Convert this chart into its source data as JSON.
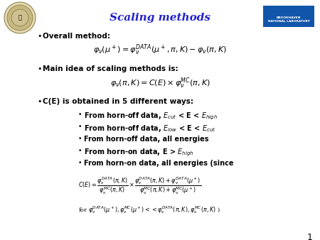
{
  "title": "Scaling methods",
  "title_color": "#2222cc",
  "title_fontsize": 11,
  "bg_color": "#ffffff",
  "bullet1_label": "Overall method:",
  "bullet2_label": "Main idea of scaling methods is:",
  "bullet3_label": "C(E) is obtained in 5 different ways:",
  "sub_bullets": [
    "From horn-off data, $E_{cut}$ < E < $E_{high}$",
    "From horn-off data, $E_{low}$ < E < $E_{cut}$",
    "From horn-off data, all energies",
    "From horn-on data, E > $E_{high}$",
    "From horn-on data, all energies (since"
  ],
  "page_num": "1",
  "bnl_box_color": "#1155aa",
  "text_fontsize": 7.5,
  "sub_fontsize": 7.0,
  "eq_fontsize": 8.0
}
